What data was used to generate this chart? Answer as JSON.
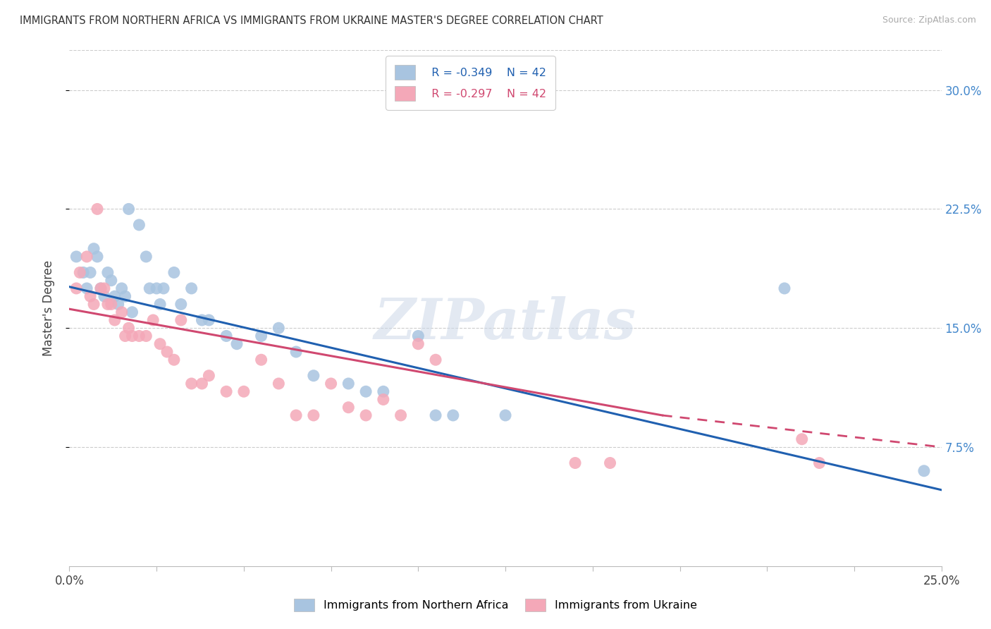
{
  "title": "IMMIGRANTS FROM NORTHERN AFRICA VS IMMIGRANTS FROM UKRAINE MASTER'S DEGREE CORRELATION CHART",
  "source": "Source: ZipAtlas.com",
  "ylabel": "Master's Degree",
  "yticks_labels": [
    "7.5%",
    "15.0%",
    "22.5%",
    "30.0%"
  ],
  "yticks_vals": [
    0.075,
    0.15,
    0.225,
    0.3
  ],
  "xrange": [
    0.0,
    0.25
  ],
  "yrange": [
    0.0,
    0.325
  ],
  "legend_r_blue": "R = -0.349",
  "legend_n_blue": "N = 42",
  "legend_r_pink": "R = -0.297",
  "legend_n_pink": "N = 42",
  "legend_label_blue": "Immigrants from Northern Africa",
  "legend_label_pink": "Immigrants from Ukraine",
  "blue_color": "#a8c4e0",
  "pink_color": "#f4a8b8",
  "trendline_blue": "#2060b0",
  "trendline_pink": "#d04870",
  "watermark": "ZIPatlas",
  "blue_scatter": [
    [
      0.002,
      0.195
    ],
    [
      0.004,
      0.185
    ],
    [
      0.005,
      0.175
    ],
    [
      0.006,
      0.185
    ],
    [
      0.007,
      0.2
    ],
    [
      0.008,
      0.195
    ],
    [
      0.009,
      0.175
    ],
    [
      0.01,
      0.17
    ],
    [
      0.011,
      0.185
    ],
    [
      0.012,
      0.18
    ],
    [
      0.013,
      0.17
    ],
    [
      0.014,
      0.165
    ],
    [
      0.015,
      0.175
    ],
    [
      0.016,
      0.17
    ],
    [
      0.017,
      0.225
    ],
    [
      0.018,
      0.16
    ],
    [
      0.02,
      0.215
    ],
    [
      0.022,
      0.195
    ],
    [
      0.023,
      0.175
    ],
    [
      0.025,
      0.175
    ],
    [
      0.026,
      0.165
    ],
    [
      0.027,
      0.175
    ],
    [
      0.03,
      0.185
    ],
    [
      0.032,
      0.165
    ],
    [
      0.035,
      0.175
    ],
    [
      0.038,
      0.155
    ],
    [
      0.04,
      0.155
    ],
    [
      0.045,
      0.145
    ],
    [
      0.048,
      0.14
    ],
    [
      0.055,
      0.145
    ],
    [
      0.06,
      0.15
    ],
    [
      0.065,
      0.135
    ],
    [
      0.07,
      0.12
    ],
    [
      0.08,
      0.115
    ],
    [
      0.085,
      0.11
    ],
    [
      0.09,
      0.11
    ],
    [
      0.1,
      0.145
    ],
    [
      0.105,
      0.095
    ],
    [
      0.11,
      0.095
    ],
    [
      0.125,
      0.095
    ],
    [
      0.205,
      0.175
    ],
    [
      0.245,
      0.06
    ]
  ],
  "pink_scatter": [
    [
      0.002,
      0.175
    ],
    [
      0.003,
      0.185
    ],
    [
      0.005,
      0.195
    ],
    [
      0.006,
      0.17
    ],
    [
      0.007,
      0.165
    ],
    [
      0.008,
      0.225
    ],
    [
      0.009,
      0.175
    ],
    [
      0.01,
      0.175
    ],
    [
      0.011,
      0.165
    ],
    [
      0.012,
      0.165
    ],
    [
      0.013,
      0.155
    ],
    [
      0.015,
      0.16
    ],
    [
      0.016,
      0.145
    ],
    [
      0.017,
      0.15
    ],
    [
      0.018,
      0.145
    ],
    [
      0.02,
      0.145
    ],
    [
      0.022,
      0.145
    ],
    [
      0.024,
      0.155
    ],
    [
      0.026,
      0.14
    ],
    [
      0.028,
      0.135
    ],
    [
      0.03,
      0.13
    ],
    [
      0.032,
      0.155
    ],
    [
      0.035,
      0.115
    ],
    [
      0.038,
      0.115
    ],
    [
      0.04,
      0.12
    ],
    [
      0.045,
      0.11
    ],
    [
      0.05,
      0.11
    ],
    [
      0.055,
      0.13
    ],
    [
      0.06,
      0.115
    ],
    [
      0.065,
      0.095
    ],
    [
      0.07,
      0.095
    ],
    [
      0.075,
      0.115
    ],
    [
      0.08,
      0.1
    ],
    [
      0.085,
      0.095
    ],
    [
      0.09,
      0.105
    ],
    [
      0.095,
      0.095
    ],
    [
      0.1,
      0.14
    ],
    [
      0.105,
      0.13
    ],
    [
      0.145,
      0.065
    ],
    [
      0.155,
      0.065
    ],
    [
      0.21,
      0.08
    ],
    [
      0.215,
      0.065
    ]
  ],
  "blue_trend": [
    0.0,
    0.25,
    0.176,
    0.048
  ],
  "pink_trend_solid": [
    0.0,
    0.17,
    0.162,
    0.095
  ],
  "pink_trend_dashed": [
    0.17,
    0.25,
    0.095,
    0.075
  ],
  "xtick_positions": [
    0.0,
    0.025,
    0.05,
    0.075,
    0.1,
    0.125,
    0.15,
    0.175,
    0.2,
    0.225,
    0.25
  ],
  "xtick_labels_show": {
    "0.0": "0.0%",
    "0.25": "25.0%"
  }
}
